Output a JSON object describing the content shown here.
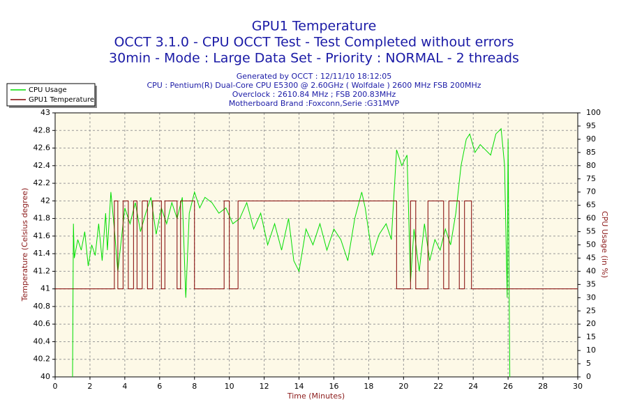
{
  "chart_data": {
    "type": "line",
    "title": "GPU1 Temperature",
    "subtitles": [
      "OCCT 3.1.0 - CPU OCCT Test - Test Completed without errors",
      "30min - Mode : Large Data Set - Priority : NORMAL - 2 threads"
    ],
    "info": [
      "Generated by OCCT : 12/11/10 18:12:05",
      "CPU : Pentium(R) Dual-Core CPU E5300 @ 2.60GHz ( Wolfdale ) 2600 MHz FSB 200MHz",
      "Overclock : 2610.84 MHz ; FSB 200.83MHz",
      "Motherboard Brand :Foxconn,Serie :G31MVP"
    ],
    "xlabel": "Time (Minutes)",
    "ylabel": "Temperature (Celsius degree)",
    "y2label": "CPU Usage (in %)",
    "xlim": [
      0,
      30
    ],
    "xticks": [
      0,
      2,
      4,
      6,
      8,
      10,
      12,
      14,
      16,
      18,
      20,
      22,
      24,
      26,
      28,
      30
    ],
    "ylim": [
      40,
      43
    ],
    "yticks": [
      40,
      40.2,
      40.4,
      40.6,
      40.8,
      41,
      41.2,
      41.4,
      41.6,
      41.8,
      42,
      42.2,
      42.4,
      42.6,
      42.8,
      43
    ],
    "y2lim": [
      0,
      100
    ],
    "y2ticks": [
      0,
      5,
      10,
      15,
      20,
      25,
      30,
      35,
      40,
      45,
      50,
      55,
      60,
      65,
      70,
      75,
      80,
      85,
      90,
      95,
      100
    ],
    "grid": true,
    "legend": "top-left",
    "series": [
      {
        "name": "CPU Usage",
        "color": "#00dd00",
        "axis": "y2",
        "x": [
          1.0,
          1.05,
          1.1,
          1.3,
          1.5,
          1.7,
          1.9,
          2.1,
          2.3,
          2.5,
          2.7,
          2.9,
          3.0,
          3.2,
          3.4,
          3.6,
          3.8,
          4.0,
          4.3,
          4.6,
          4.9,
          5.2,
          5.5,
          5.8,
          6.1,
          6.4,
          6.7,
          7.0,
          7.3,
          7.5,
          7.7,
          8.0,
          8.3,
          8.6,
          9.0,
          9.4,
          9.8,
          10.2,
          10.6,
          11.0,
          11.4,
          11.8,
          12.2,
          12.6,
          13.0,
          13.4,
          13.7,
          14.0,
          14.4,
          14.8,
          15.2,
          15.6,
          16.0,
          16.4,
          16.8,
          17.2,
          17.6,
          17.8,
          18.2,
          18.6,
          19.0,
          19.3,
          19.6,
          19.9,
          20.2,
          20.4,
          20.6,
          20.9,
          21.2,
          21.5,
          21.8,
          22.1,
          22.4,
          22.7,
          23.0,
          23.3,
          23.6,
          23.8,
          24.1,
          24.4,
          24.7,
          25.0,
          25.3,
          25.6,
          25.8,
          25.95,
          26.0,
          26.1
        ],
        "values": [
          0,
          58,
          45,
          52,
          48,
          55,
          42,
          50,
          46,
          58,
          44,
          62,
          48,
          70,
          56,
          40,
          52,
          64,
          58,
          66,
          55,
          62,
          68,
          54,
          64,
          58,
          66,
          60,
          68,
          30,
          62,
          70,
          64,
          68,
          66,
          62,
          64,
          58,
          60,
          66,
          56,
          62,
          50,
          58,
          48,
          60,
          44,
          40,
          56,
          50,
          58,
          48,
          56,
          52,
          44,
          60,
          70,
          64,
          46,
          54,
          58,
          52,
          86,
          80,
          84,
          36,
          56,
          40,
          58,
          44,
          52,
          48,
          56,
          50,
          62,
          80,
          90,
          92,
          85,
          88,
          86,
          84,
          92,
          94,
          80,
          30,
          90,
          0
        ]
      },
      {
        "name": "GPU1 Temperature",
        "color": "#800000",
        "x": [
          0,
          3.4,
          3.4,
          3.6,
          3.6,
          3.9,
          3.9,
          4.2,
          4.2,
          4.5,
          4.5,
          4.7,
          4.7,
          5.0,
          5.0,
          5.3,
          5.3,
          5.6,
          5.6,
          6.1,
          6.1,
          6.3,
          6.3,
          7.0,
          7.0,
          7.2,
          7.2,
          8.0,
          8.0,
          9.7,
          9.7,
          10.0,
          10.0,
          10.5,
          10.5,
          19.6,
          19.6,
          20.4,
          20.4,
          20.7,
          20.7,
          21.4,
          21.4,
          22.3,
          22.3,
          22.6,
          22.6,
          23.2,
          23.2,
          23.5,
          23.5,
          23.9,
          23.9,
          30
        ],
        "values": [
          41,
          41,
          42,
          42,
          41,
          41,
          42,
          42,
          41,
          41,
          42,
          42,
          41,
          41,
          42,
          42,
          41,
          41,
          42,
          42,
          41,
          41,
          42,
          42,
          41,
          41,
          42,
          42,
          41,
          41,
          42,
          42,
          41,
          41,
          42,
          42,
          41,
          41,
          42,
          42,
          41,
          41,
          42,
          42,
          41,
          41,
          42,
          42,
          41,
          41,
          42,
          42,
          41,
          41
        ]
      }
    ]
  }
}
